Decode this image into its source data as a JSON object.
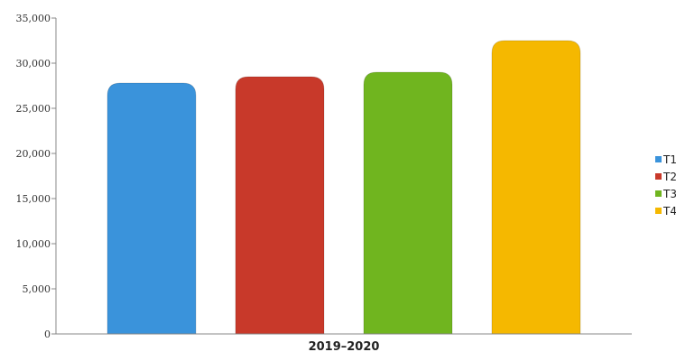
{
  "chart_data": {
    "type": "bar",
    "categories": [
      "2019–2020"
    ],
    "series": [
      {
        "name": "T1",
        "values": [
          27800
        ],
        "color": "#3A93DB"
      },
      {
        "name": "T2",
        "values": [
          28500
        ],
        "color": "#C8392A"
      },
      {
        "name": "T3",
        "values": [
          29000
        ],
        "color": "#70B51F"
      },
      {
        "name": "T4",
        "values": [
          32500
        ],
        "color": "#F5B800"
      }
    ],
    "yticks": [
      "0",
      "5,000",
      "10,000",
      "15,000",
      "20,000",
      "25,000",
      "30,000",
      "35,000"
    ],
    "ylim": [
      0,
      35000
    ],
    "grid": false,
    "legend_position": "right"
  }
}
